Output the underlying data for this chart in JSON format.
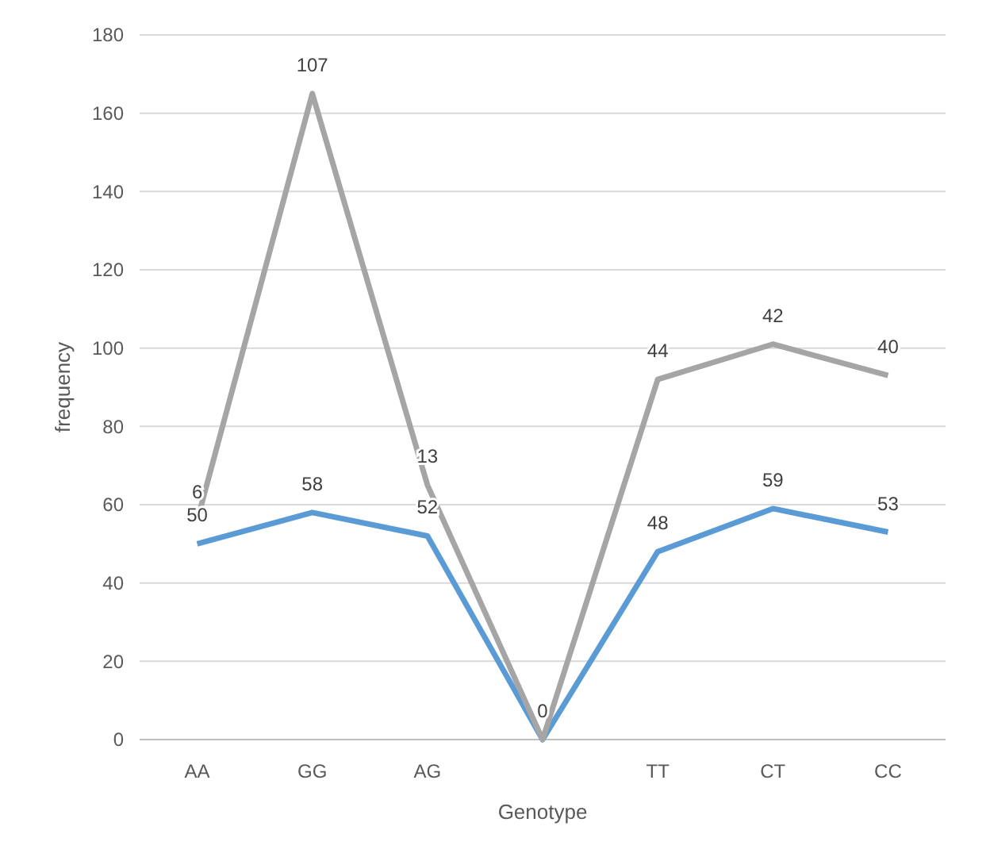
{
  "chart_data": {
    "type": "line",
    "xlabel": "Genotype",
    "ylabel": "frequency",
    "categories": [
      "AA",
      "GG",
      "AG",
      null,
      "TT",
      "CT",
      "CC"
    ],
    "series": [
      {
        "color": "#5b9bd5",
        "values": [
          50,
          58,
          52,
          0,
          48,
          59,
          53
        ],
        "value_labels": [
          "50",
          "58",
          "52",
          "0",
          "48",
          "59",
          "53"
        ]
      },
      {
        "color": "#a5a5a5",
        "values": [
          56,
          165,
          65,
          0,
          92,
          101,
          93
        ]
      }
    ],
    "annotations": [
      {
        "text": "6",
        "x": "AA",
        "y": 56
      },
      {
        "text": "107",
        "x": "GG",
        "y": 165
      },
      {
        "text": "13",
        "x": "AG",
        "y": 65
      },
      {
        "text": "44",
        "x": "TT",
        "y": 92
      },
      {
        "text": "42",
        "x": "CT",
        "y": 101
      },
      {
        "text": "40",
        "x": "CC",
        "y": 93
      }
    ],
    "ylim": [
      0,
      180
    ],
    "yticks": [
      0,
      20,
      40,
      60,
      80,
      100,
      120,
      140,
      160,
      180
    ],
    "grid": "y",
    "marker": "none",
    "line_style": "solid"
  }
}
